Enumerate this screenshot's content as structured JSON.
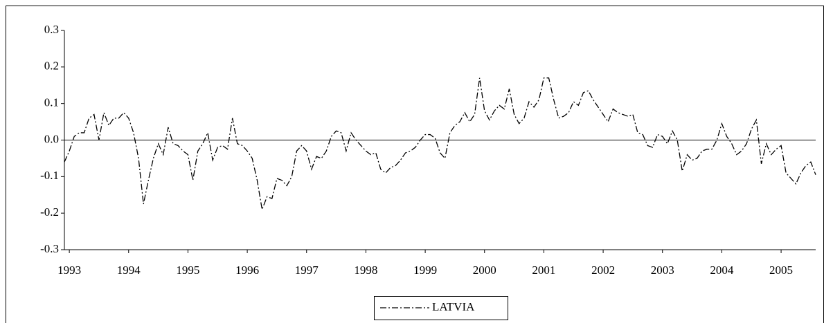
{
  "chart_data": {
    "type": "line",
    "x": [
      1992.917,
      1993.0,
      1993.083,
      1993.167,
      1993.25,
      1993.333,
      1993.417,
      1993.5,
      1993.583,
      1993.667,
      1993.75,
      1993.833,
      1993.917,
      1994.0,
      1994.083,
      1994.167,
      1994.25,
      1994.333,
      1994.417,
      1994.5,
      1994.583,
      1994.667,
      1994.75,
      1994.833,
      1994.917,
      1995.0,
      1995.083,
      1995.167,
      1995.25,
      1995.333,
      1995.417,
      1995.5,
      1995.583,
      1995.667,
      1995.75,
      1995.833,
      1995.917,
      1996.0,
      1996.083,
      1996.167,
      1996.25,
      1996.333,
      1996.417,
      1996.5,
      1996.583,
      1996.667,
      1996.75,
      1996.833,
      1996.917,
      1997.0,
      1997.083,
      1997.167,
      1997.25,
      1997.333,
      1997.417,
      1997.5,
      1997.583,
      1997.667,
      1997.75,
      1997.833,
      1997.917,
      1998.0,
      1998.083,
      1998.167,
      1998.25,
      1998.333,
      1998.417,
      1998.5,
      1998.583,
      1998.667,
      1998.75,
      1998.833,
      1998.917,
      1999.0,
      1999.083,
      1999.167,
      1999.25,
      1999.333,
      1999.417,
      1999.5,
      1999.583,
      1999.667,
      1999.75,
      1999.833,
      1999.917,
      2000.0,
      2000.083,
      2000.167,
      2000.25,
      2000.333,
      2000.417,
      2000.5,
      2000.583,
      2000.667,
      2000.75,
      2000.833,
      2000.917,
      2001.0,
      2001.083,
      2001.167,
      2001.25,
      2001.333,
      2001.417,
      2001.5,
      2001.583,
      2001.667,
      2001.75,
      2001.833,
      2001.917,
      2002.0,
      2002.083,
      2002.167,
      2002.25,
      2002.333,
      2002.417,
      2002.5,
      2002.583,
      2002.667,
      2002.75,
      2002.833,
      2002.917,
      2003.0,
      2003.083,
      2003.167,
      2003.25,
      2003.333,
      2003.417,
      2003.5,
      2003.583,
      2003.667,
      2003.75,
      2003.833,
      2003.917,
      2004.0,
      2004.083,
      2004.167,
      2004.25,
      2004.333,
      2004.417,
      2004.5,
      2004.583,
      2004.667,
      2004.75,
      2004.833,
      2004.917,
      2005.0,
      2005.083,
      2005.167,
      2005.25,
      2005.333,
      2005.417,
      2005.5,
      2005.583
    ],
    "series": [
      {
        "name": "LATVIA",
        "color": "#000000",
        "values": [
          -0.06,
          -0.03,
          0.01,
          0.02,
          0.02,
          0.06,
          0.07,
          0.0,
          0.075,
          0.04,
          0.06,
          0.06,
          0.075,
          0.06,
          0.02,
          -0.05,
          -0.175,
          -0.11,
          -0.05,
          -0.01,
          -0.04,
          0.035,
          -0.01,
          -0.015,
          -0.03,
          -0.04,
          -0.11,
          -0.03,
          -0.01,
          0.02,
          -0.055,
          -0.02,
          -0.015,
          -0.025,
          0.06,
          -0.01,
          -0.015,
          -0.03,
          -0.05,
          -0.11,
          -0.19,
          -0.155,
          -0.16,
          -0.105,
          -0.11,
          -0.125,
          -0.1,
          -0.03,
          -0.015,
          -0.03,
          -0.08,
          -0.045,
          -0.05,
          -0.03,
          0.01,
          0.025,
          0.02,
          -0.03,
          0.02,
          0.0,
          -0.015,
          -0.03,
          -0.04,
          -0.035,
          -0.08,
          -0.09,
          -0.075,
          -0.07,
          -0.055,
          -0.035,
          -0.03,
          -0.02,
          0.0,
          0.015,
          0.015,
          0.005,
          -0.035,
          -0.05,
          0.02,
          0.04,
          0.05,
          0.075,
          0.05,
          0.07,
          0.17,
          0.08,
          0.055,
          0.08,
          0.095,
          0.085,
          0.14,
          0.07,
          0.045,
          0.06,
          0.105,
          0.09,
          0.11,
          0.17,
          0.17,
          0.11,
          0.06,
          0.065,
          0.075,
          0.105,
          0.095,
          0.13,
          0.135,
          0.11,
          0.09,
          0.07,
          0.05,
          0.085,
          0.075,
          0.07,
          0.065,
          0.07,
          0.02,
          0.015,
          -0.015,
          -0.02,
          0.015,
          0.01,
          -0.01,
          0.025,
          0.0,
          -0.085,
          -0.04,
          -0.055,
          -0.05,
          -0.03,
          -0.025,
          -0.025,
          0.0,
          0.045,
          0.01,
          -0.01,
          -0.04,
          -0.03,
          -0.01,
          0.03,
          0.055,
          -0.065,
          -0.01,
          -0.04,
          -0.025,
          -0.015,
          -0.09,
          -0.105,
          -0.12,
          -0.09,
          -0.07,
          -0.06,
          -0.095
        ]
      }
    ],
    "xlim": [
      1992.917,
      2005.583
    ],
    "xticks": [
      1993,
      1994,
      1995,
      1996,
      1997,
      1998,
      1999,
      2000,
      2001,
      2002,
      2003,
      2004,
      2005
    ],
    "ylim": [
      -0.3,
      0.3
    ],
    "yticks": [
      0.3,
      0.2,
      0.1,
      {
        "value": 0,
        "label": "0.0"
      },
      -0.1,
      -0.2,
      -0.3
    ],
    "grid": false,
    "legend": "bottom"
  }
}
